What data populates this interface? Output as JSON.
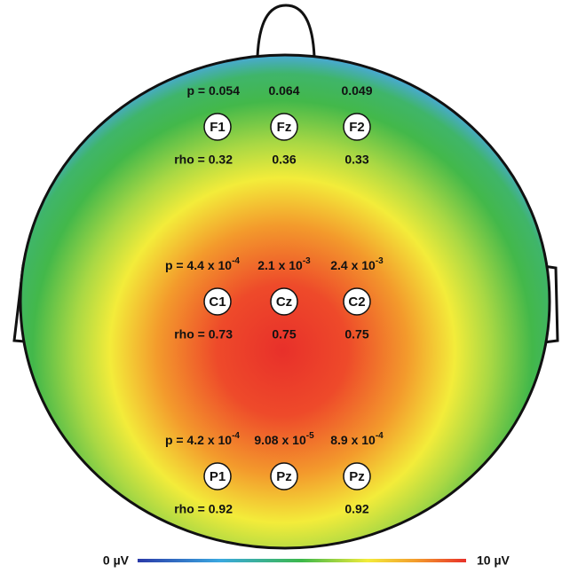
{
  "rows": [
    {
      "columns": [
        {
          "p": {
            "base": "p = 0.054"
          },
          "electrode": "F1",
          "rho": "rho = 0.32"
        },
        {
          "p": {
            "base": "0.064"
          },
          "electrode": "Fz",
          "rho": "0.36"
        },
        {
          "p": {
            "base": "0.049"
          },
          "electrode": "F2",
          "rho": "0.33"
        }
      ]
    },
    {
      "columns": [
        {
          "p": {
            "base": "p = 4.4 x 10",
            "exp": "-4"
          },
          "electrode": "C1",
          "rho": "rho = 0.73"
        },
        {
          "p": {
            "base": "2.1 x 10",
            "exp": "-3"
          },
          "electrode": "Cz",
          "rho": "0.75"
        },
        {
          "p": {
            "base": "2.4 x 10",
            "exp": "-3"
          },
          "electrode": "C2",
          "rho": "0.75"
        }
      ]
    },
    {
      "columns": [
        {
          "p": {
            "base": "p = 4.2 x 10",
            "exp": "-4"
          },
          "electrode": "P1",
          "rho": "rho = 0.92"
        },
        {
          "p": {
            "base": "9.08 x 10",
            "exp": "-5"
          },
          "electrode": "Pz"
        },
        {
          "p": {
            "base": "8.9 x 10",
            "exp": "-4"
          },
          "electrode": "Pz",
          "rho": "0.92"
        }
      ]
    }
  ],
  "colorbar": {
    "min_label": "0 µV",
    "max_label": "10 µV"
  }
}
